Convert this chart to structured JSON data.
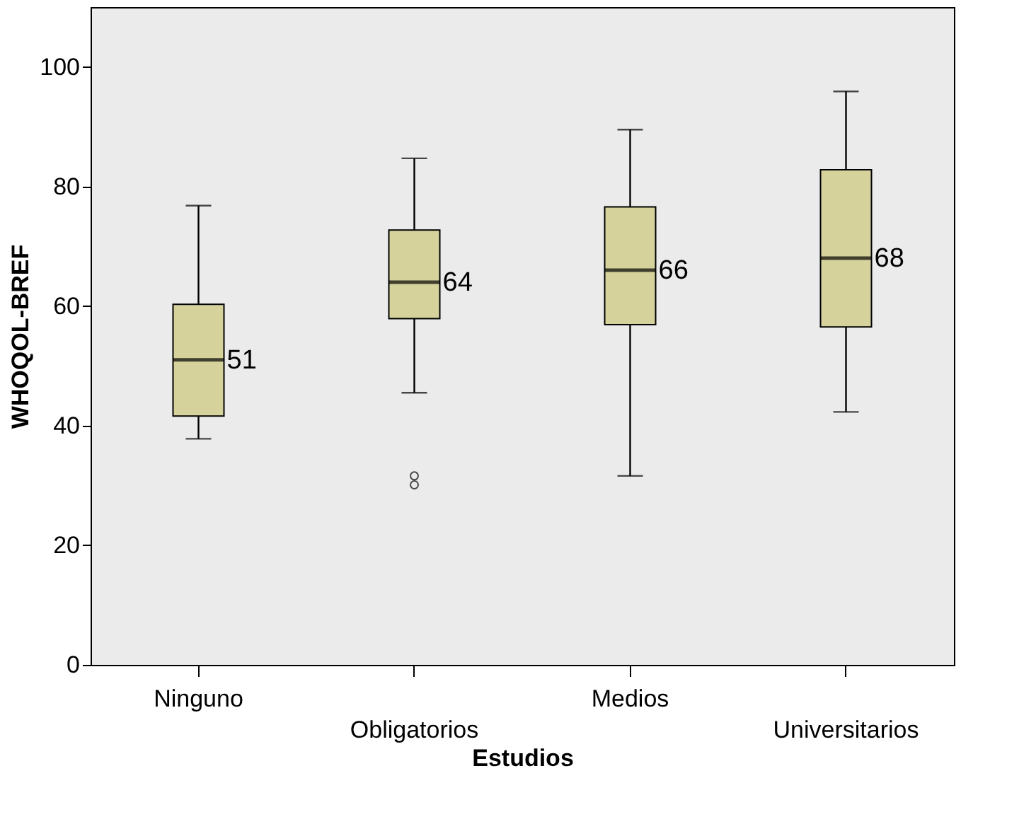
{
  "chart_data": {
    "type": "box",
    "xlabel": "Estudios",
    "ylabel": "WHOQOL-BREF",
    "categories": [
      "Ninguno",
      "Obligatorios",
      "Medios",
      "Universitarios"
    ],
    "boxes": [
      {
        "low": 37.8,
        "q1": 41.6,
        "median": 51,
        "q3": 60.3,
        "high": 76.8
      },
      {
        "low": 45.5,
        "q1": 57.9,
        "median": 64,
        "q3": 72.7,
        "high": 84.7,
        "outliers": [
          31.6,
          30.1
        ]
      },
      {
        "low": 31.6,
        "q1": 56.9,
        "median": 66,
        "q3": 76.6,
        "high": 89.5
      },
      {
        "low": 42.3,
        "q1": 56.5,
        "median": 68,
        "q3": 82.8,
        "high": 95.9
      }
    ],
    "color": "#d6d29c",
    "annotations": [
      {
        "text": "51",
        "x": "Ninguno",
        "y": 51
      },
      {
        "text": "64",
        "x": "Obligatorios",
        "y": 64
      },
      {
        "text": "66",
        "x": "Medios",
        "y": 66
      },
      {
        "text": "68",
        "x": "Universitarios",
        "y": 68
      }
    ],
    "ylim": [
      0,
      110
    ],
    "yticks": [
      0,
      20,
      40,
      60,
      80,
      100
    ]
  }
}
